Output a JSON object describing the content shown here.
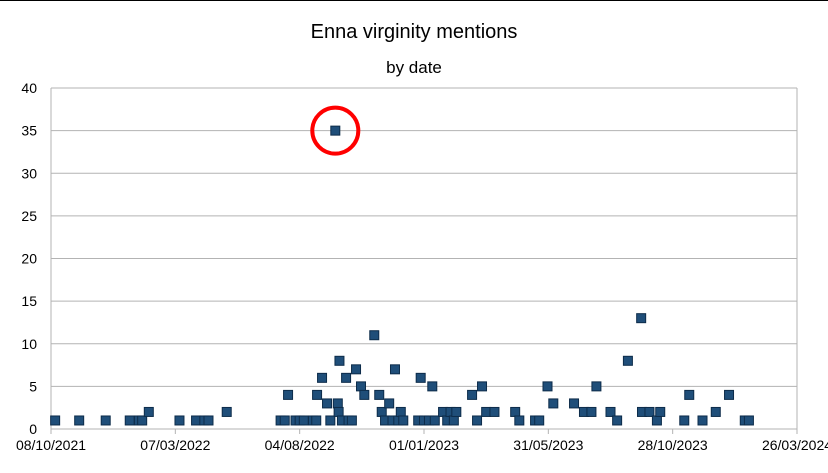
{
  "chart_data": {
    "type": "scatter",
    "title": "Enna virginity mentions",
    "subtitle": "by date",
    "xlabel": "",
    "ylabel": "",
    "x_is_date": true,
    "xlim": [
      "2021-10-08",
      "2024-03-26"
    ],
    "ylim": [
      0,
      40
    ],
    "y_ticks": [
      0,
      5,
      10,
      15,
      20,
      25,
      30,
      35,
      40
    ],
    "x_ticks": [
      "2021-10-08",
      "2022-03-07",
      "2022-08-04",
      "2023-01-01",
      "2023-05-31",
      "2023-10-28",
      "2024-03-26"
    ],
    "x_tick_labels": [
      "08/10/2021",
      "07/03/2022",
      "04/08/2022",
      "01/01/2023",
      "31/05/2023",
      "28/10/2023",
      "26/03/2024"
    ],
    "grid": "horizontal",
    "marker_color": "#1f4e79",
    "annotation": {
      "type": "circle",
      "color": "#ff0000",
      "around_point": {
        "x": "2022-09-16",
        "y": 35
      }
    },
    "points": [
      {
        "x": "2021-10-13",
        "y": 1
      },
      {
        "x": "2021-11-11",
        "y": 1
      },
      {
        "x": "2021-12-13",
        "y": 1
      },
      {
        "x": "2022-01-11",
        "y": 1
      },
      {
        "x": "2022-01-22",
        "y": 1
      },
      {
        "x": "2022-01-26",
        "y": 1
      },
      {
        "x": "2022-02-03",
        "y": 2
      },
      {
        "x": "2022-03-12",
        "y": 1
      },
      {
        "x": "2022-04-01",
        "y": 1
      },
      {
        "x": "2022-04-11",
        "y": 1
      },
      {
        "x": "2022-04-16",
        "y": 1
      },
      {
        "x": "2022-05-08",
        "y": 2
      },
      {
        "x": "2022-07-12",
        "y": 1
      },
      {
        "x": "2022-07-17",
        "y": 1
      },
      {
        "x": "2022-07-21",
        "y": 4
      },
      {
        "x": "2022-07-30",
        "y": 1
      },
      {
        "x": "2022-08-04",
        "y": 1
      },
      {
        "x": "2022-08-09",
        "y": 1
      },
      {
        "x": "2022-08-20",
        "y": 1
      },
      {
        "x": "2022-08-24",
        "y": 1
      },
      {
        "x": "2022-08-25",
        "y": 4
      },
      {
        "x": "2022-08-31",
        "y": 6
      },
      {
        "x": "2022-09-06",
        "y": 3
      },
      {
        "x": "2022-09-10",
        "y": 1
      },
      {
        "x": "2022-09-16",
        "y": 35
      },
      {
        "x": "2022-09-19",
        "y": 3
      },
      {
        "x": "2022-09-20",
        "y": 2
      },
      {
        "x": "2022-09-21",
        "y": 8
      },
      {
        "x": "2022-09-24",
        "y": 1
      },
      {
        "x": "2022-09-29",
        "y": 6
      },
      {
        "x": "2022-10-02",
        "y": 1
      },
      {
        "x": "2022-10-06",
        "y": 1
      },
      {
        "x": "2022-10-11",
        "y": 7
      },
      {
        "x": "2022-10-17",
        "y": 5
      },
      {
        "x": "2022-10-21",
        "y": 4
      },
      {
        "x": "2022-11-02",
        "y": 11
      },
      {
        "x": "2022-11-08",
        "y": 4
      },
      {
        "x": "2022-11-11",
        "y": 2
      },
      {
        "x": "2022-11-15",
        "y": 1
      },
      {
        "x": "2022-11-20",
        "y": 3
      },
      {
        "x": "2022-11-24",
        "y": 1
      },
      {
        "x": "2022-11-27",
        "y": 7
      },
      {
        "x": "2022-12-01",
        "y": 1
      },
      {
        "x": "2022-12-04",
        "y": 2
      },
      {
        "x": "2022-12-07",
        "y": 1
      },
      {
        "x": "2022-12-25",
        "y": 1
      },
      {
        "x": "2022-12-28",
        "y": 6
      },
      {
        "x": "2023-01-01",
        "y": 1
      },
      {
        "x": "2023-01-07",
        "y": 1
      },
      {
        "x": "2023-01-11",
        "y": 5
      },
      {
        "x": "2023-01-14",
        "y": 1
      },
      {
        "x": "2023-01-24",
        "y": 2
      },
      {
        "x": "2023-01-29",
        "y": 1
      },
      {
        "x": "2023-02-02",
        "y": 2
      },
      {
        "x": "2023-02-06",
        "y": 1
      },
      {
        "x": "2023-02-09",
        "y": 2
      },
      {
        "x": "2023-02-28",
        "y": 4
      },
      {
        "x": "2023-03-06",
        "y": 1
      },
      {
        "x": "2023-03-12",
        "y": 5
      },
      {
        "x": "2023-03-17",
        "y": 2
      },
      {
        "x": "2023-03-27",
        "y": 2
      },
      {
        "x": "2023-04-21",
        "y": 2
      },
      {
        "x": "2023-04-26",
        "y": 1
      },
      {
        "x": "2023-05-15",
        "y": 1
      },
      {
        "x": "2023-05-20",
        "y": 1
      },
      {
        "x": "2023-05-30",
        "y": 5
      },
      {
        "x": "2023-06-06",
        "y": 3
      },
      {
        "x": "2023-07-01",
        "y": 3
      },
      {
        "x": "2023-07-13",
        "y": 2
      },
      {
        "x": "2023-07-22",
        "y": 2
      },
      {
        "x": "2023-07-28",
        "y": 5
      },
      {
        "x": "2023-08-14",
        "y": 2
      },
      {
        "x": "2023-08-22",
        "y": 1
      },
      {
        "x": "2023-09-04",
        "y": 8
      },
      {
        "x": "2023-09-20",
        "y": 13
      },
      {
        "x": "2023-09-21",
        "y": 2
      },
      {
        "x": "2023-09-30",
        "y": 2
      },
      {
        "x": "2023-10-09",
        "y": 1
      },
      {
        "x": "2023-10-13",
        "y": 2
      },
      {
        "x": "2023-11-11",
        "y": 1
      },
      {
        "x": "2023-11-17",
        "y": 4
      },
      {
        "x": "2023-12-03",
        "y": 1
      },
      {
        "x": "2023-12-19",
        "y": 2
      },
      {
        "x": "2024-01-04",
        "y": 4
      },
      {
        "x": "2024-01-23",
        "y": 1
      },
      {
        "x": "2024-01-28",
        "y": 1
      }
    ]
  }
}
